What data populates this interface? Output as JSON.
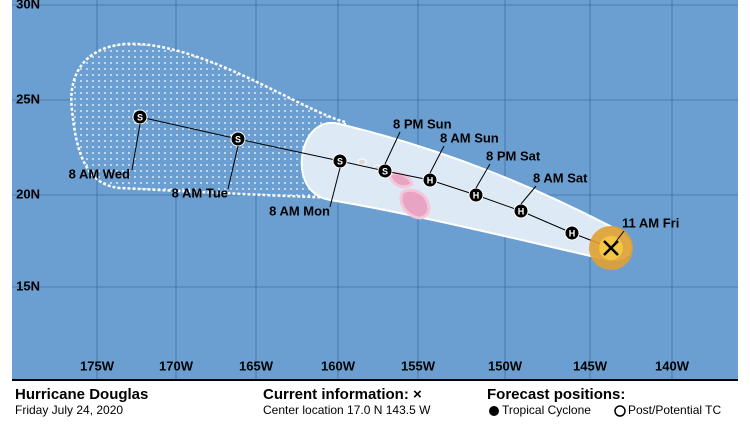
{
  "map": {
    "lat_labels": [
      "30N",
      "25N",
      "20N",
      "15N"
    ],
    "lon_labels": [
      "175W",
      "170W",
      "165W",
      "160W",
      "155W",
      "150W",
      "145W",
      "140W"
    ],
    "markers": [
      "S",
      "S",
      "S",
      "S",
      "H",
      "H",
      "H",
      "H"
    ],
    "position_labels": [
      "8 AM Wed",
      "8 AM Tue",
      "8 AM Mon",
      "8 PM Sun",
      "8 AM Sun",
      "8 PM Sat",
      "8 AM Sat",
      "11 AM Fri"
    ]
  },
  "legend": {
    "storm_name": "Hurricane Douglas",
    "date": "Friday July 24, 2020",
    "current_title": "Current information: ×",
    "center_location": "Center location 17.0 N 143.5 W",
    "forecast_title": "Forecast positions:",
    "tropical_cyclone": "Tropical Cyclone",
    "post_tc": "Post/Potential TC"
  }
}
